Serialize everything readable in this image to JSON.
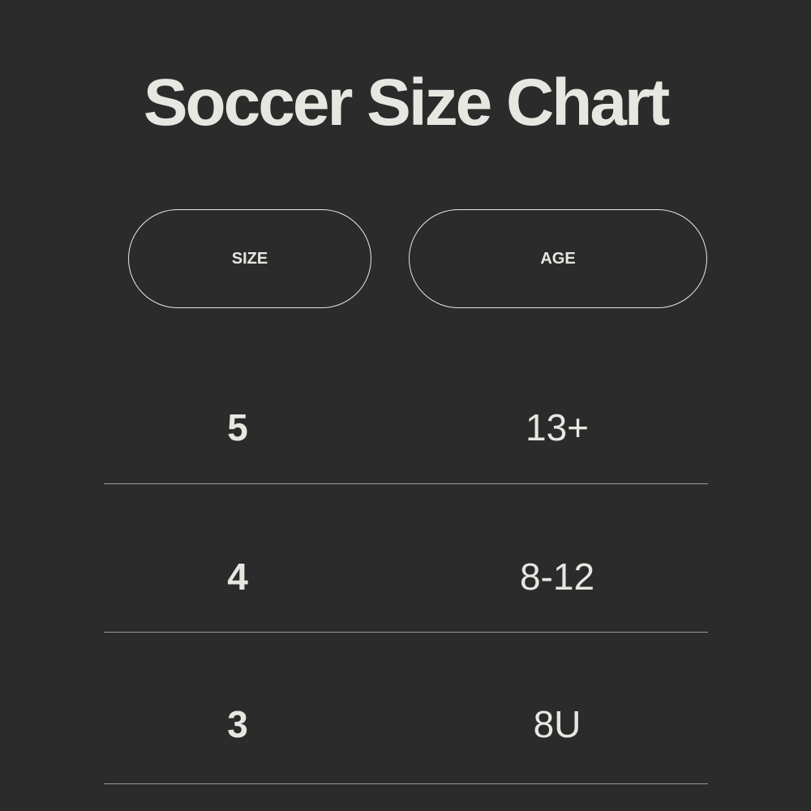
{
  "title": "Soccer Size Chart",
  "headers": [
    "SIZE",
    "AGE"
  ],
  "rows": [
    {
      "size": "5",
      "age": "13+"
    },
    {
      "size": "4",
      "age": "8-12"
    },
    {
      "size": "3",
      "age": "8U"
    }
  ]
}
